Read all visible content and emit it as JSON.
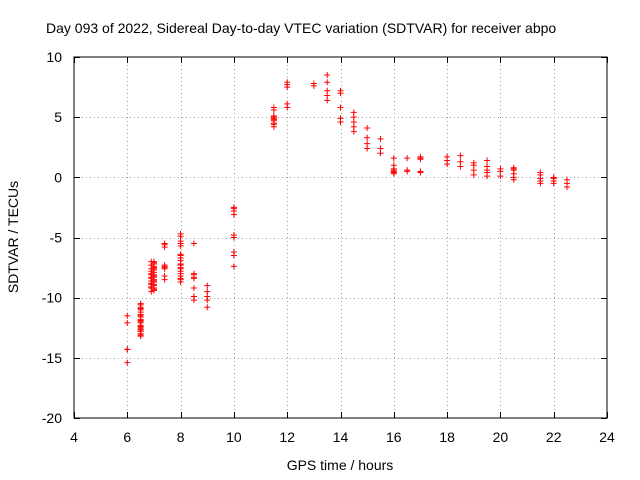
{
  "chart_data": {
    "type": "scatter",
    "title": "Day 093 of 2022, Sidereal Day-to-day VTEC variation (SDTVAR) for receiver abpo",
    "xlabel": "GPS time / hours",
    "ylabel": "SDTVAR / TECUs",
    "xlim": [
      4,
      24
    ],
    "ylim": [
      -20,
      10
    ],
    "xticks": [
      4,
      6,
      8,
      10,
      12,
      14,
      16,
      18,
      20,
      22,
      24
    ],
    "yticks": [
      -20,
      -15,
      -10,
      -5,
      0,
      5,
      10
    ],
    "grid": true,
    "marker": "plus",
    "color": "#ff0000",
    "series": [
      {
        "name": "SDTVAR",
        "x": [
          6.0,
          6.0,
          6.0,
          6.0,
          6.0,
          6.5,
          6.5,
          6.5,
          6.5,
          6.5,
          6.5,
          6.5,
          6.5,
          6.5,
          6.5,
          6.5,
          6.5,
          6.5,
          6.5,
          6.5,
          6.5,
          6.5,
          6.5,
          6.5,
          6.5,
          6.5,
          6.5,
          6.9,
          6.9,
          6.9,
          6.9,
          6.9,
          6.9,
          6.9,
          6.9,
          6.9,
          6.9,
          6.9,
          6.9,
          6.9,
          6.9,
          7.0,
          7.0,
          7.0,
          7.0,
          7.0,
          7.0,
          7.0,
          7.0,
          7.0,
          7.0,
          7.0,
          7.0,
          7.0,
          7.0,
          7.0,
          7.0,
          7.0,
          7.0,
          7.0,
          7.4,
          7.4,
          7.4,
          7.4,
          7.4,
          7.4,
          7.4,
          7.4,
          7.4,
          8.0,
          8.0,
          8.0,
          8.0,
          8.0,
          8.0,
          8.0,
          8.0,
          8.0,
          8.0,
          8.0,
          8.0,
          8.0,
          8.0,
          8.0,
          8.0,
          8.0,
          8.0,
          8.0,
          8.5,
          8.5,
          8.5,
          8.5,
          8.5,
          8.5,
          8.5,
          8.5,
          8.5,
          9.0,
          9.0,
          9.0,
          9.0,
          9.0,
          10.0,
          10.0,
          10.0,
          10.0,
          10.0,
          10.0,
          10.0,
          10.0,
          10.0,
          11.5,
          11.5,
          11.5,
          11.5,
          11.5,
          11.5,
          11.5,
          11.5,
          11.5,
          11.5,
          12.0,
          12.0,
          12.0,
          12.0,
          12.0,
          13.0,
          13.0,
          13.5,
          13.5,
          13.5,
          13.5,
          13.5,
          14.0,
          14.0,
          14.0,
          14.0,
          14.0,
          14.5,
          14.5,
          14.5,
          14.5,
          14.5,
          15.0,
          15.0,
          15.0,
          15.0,
          15.5,
          15.5,
          15.5,
          16.0,
          16.0,
          16.0,
          16.0,
          16.0,
          16.0,
          16.0,
          16.5,
          16.5,
          16.5,
          17.0,
          17.0,
          17.0,
          17.0,
          17.0,
          18.0,
          18.0,
          18.0,
          18.5,
          18.5,
          18.5,
          19.0,
          19.0,
          19.0,
          19.0,
          19.5,
          19.5,
          19.5,
          19.5,
          19.5,
          20.0,
          20.0,
          20.0,
          20.5,
          20.5,
          20.5,
          20.5,
          20.5,
          20.5,
          21.5,
          21.5,
          21.5,
          21.5,
          21.5,
          22.0,
          22.0,
          22.0,
          22.0,
          22.5,
          22.5,
          22.5
        ],
        "y": [
          -11.5,
          -12.1,
          -14.3,
          -15.4,
          -14.3,
          -10.6,
          -10.8,
          -11.0,
          -11.5,
          -11.8,
          -12.1,
          -12.4,
          -12.7,
          -13.0,
          -13.2,
          -12.5,
          -12.0,
          -11.6,
          -11.2,
          -10.5,
          -11.9,
          -12.3,
          -12.8,
          -11.4,
          -13.1,
          -10.9,
          -12.6,
          -7.0,
          -7.3,
          -7.6,
          -8.0,
          -8.3,
          -8.6,
          -8.9,
          -9.2,
          -9.5,
          -7.8,
          -8.1,
          -8.4,
          -8.8,
          -9.1,
          -7.1,
          -7.4,
          -7.7,
          -8.1,
          -8.5,
          -8.9,
          -9.2,
          -9.4,
          -7.2,
          -7.5,
          -7.9,
          -8.2,
          -8.6,
          -9.0,
          -9.3,
          -7.0,
          -7.6,
          -8.3,
          -8.7,
          -5.5,
          -5.8,
          -7.3,
          -7.6,
          -7.5,
          -7.4,
          -8.2,
          -8.5,
          -5.6,
          -4.7,
          -4.9,
          -5.5,
          -5.7,
          -6.5,
          -6.7,
          -7.2,
          -7.5,
          -7.8,
          -8.2,
          -8.5,
          -5.3,
          -6.4,
          -6.9,
          -7.3,
          -7.6,
          -8.0,
          -8.4,
          -8.7,
          -5.5,
          -8.0,
          -8.3,
          -9.2,
          -9.9,
          -10.2,
          -8.1,
          -8.4,
          -9.9,
          -9.0,
          -9.5,
          -9.9,
          -10.2,
          -10.8,
          -2.5,
          -2.8,
          -3.1,
          -4.8,
          -5.0,
          -6.2,
          -6.5,
          -7.4,
          -2.6,
          4.2,
          4.5,
          4.8,
          5.1,
          5.6,
          5.8,
          4.4,
          4.7,
          5.0,
          4.9,
          5.8,
          6.1,
          7.5,
          7.9,
          7.7,
          7.6,
          7.8,
          8.5,
          7.9,
          7.2,
          6.8,
          6.4,
          7.0,
          7.2,
          5.8,
          4.9,
          4.6,
          5.4,
          5.0,
          4.6,
          4.2,
          3.8,
          4.1,
          3.3,
          2.8,
          2.4,
          3.2,
          2.4,
          2.0,
          1.6,
          1.0,
          0.7,
          0.5,
          0.3,
          0.6,
          0.4,
          1.6,
          0.6,
          0.5,
          1.6,
          1.7,
          1.5,
          0.5,
          0.4,
          1.4,
          1.1,
          1.7,
          1.8,
          1.3,
          0.9,
          1.2,
          1.0,
          0.6,
          0.2,
          1.4,
          0.9,
          0.6,
          0.1,
          0.4,
          0.7,
          0.5,
          0.1,
          0.8,
          0.6,
          0.3,
          0.0,
          -0.2,
          0.7,
          0.4,
          0.2,
          -0.3,
          -0.1,
          -0.5,
          0.0,
          -0.1,
          -0.3,
          -0.5,
          -0.2,
          -0.5,
          -0.8
        ]
      }
    ]
  }
}
